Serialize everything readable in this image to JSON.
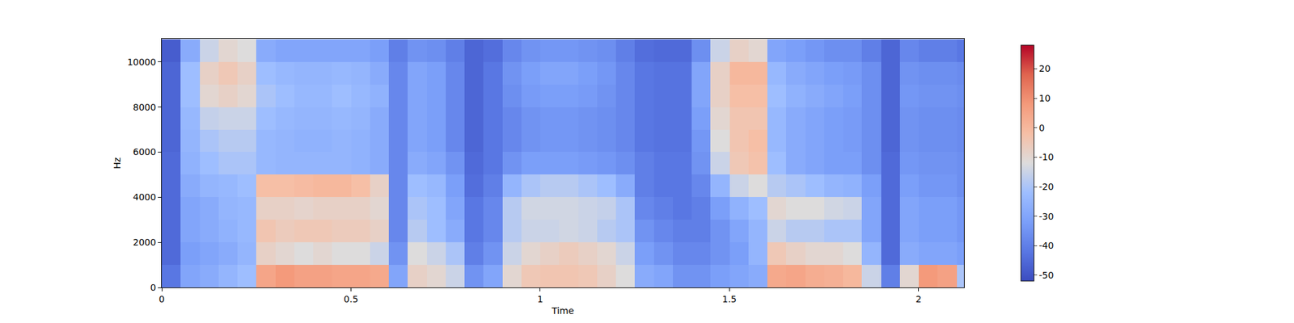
{
  "chart_data": {
    "type": "heatmap",
    "x_label": "Time",
    "y_label": "Hz",
    "xlim": [
      0,
      2.12
    ],
    "ylim": [
      0,
      11025
    ],
    "xticks": [
      0,
      0.5,
      1,
      1.5,
      2
    ],
    "yticks": [
      0,
      2000,
      4000,
      6000,
      8000,
      10000
    ],
    "zlim": [
      -52,
      28
    ],
    "zticks": [
      -50,
      -40,
      -30,
      -20,
      -10,
      0,
      10,
      20
    ],
    "x": [
      0.025,
      0.075,
      0.125,
      0.175,
      0.225,
      0.275,
      0.325,
      0.375,
      0.425,
      0.475,
      0.525,
      0.575,
      0.625,
      0.675,
      0.725,
      0.775,
      0.825,
      0.875,
      0.925,
      0.975,
      1.025,
      1.075,
      1.125,
      1.175,
      1.225,
      1.275,
      1.325,
      1.375,
      1.425,
      1.475,
      1.525,
      1.575,
      1.625,
      1.675,
      1.725,
      1.775,
      1.825,
      1.875,
      1.925,
      1.975,
      2.025,
      2.075,
      2.125
    ],
    "y": [
      500,
      1500,
      2500,
      3500,
      4500,
      5500,
      6500,
      7500,
      8500,
      9500,
      10500
    ],
    "cells": [
      [
        -42,
        -30,
        -28,
        -25,
        -22,
        5,
        8,
        6,
        6,
        5,
        5,
        4,
        -30,
        -8,
        -10,
        -15,
        -35,
        -30,
        -10,
        -5,
        -4,
        -4,
        -5,
        -8,
        -12,
        -28,
        -30,
        -35,
        -35,
        -32,
        -30,
        -28,
        4,
        5,
        3,
        2,
        0,
        -15,
        -40,
        -10,
        8,
        6,
        -20
      ],
      [
        -45,
        -32,
        -30,
        -28,
        -25,
        -8,
        -10,
        -12,
        -10,
        -12,
        -12,
        -15,
        -35,
        -12,
        -15,
        -20,
        -40,
        -35,
        -15,
        -10,
        -8,
        -6,
        -8,
        -10,
        -15,
        -32,
        -35,
        -38,
        -38,
        -35,
        -32,
        -25,
        -5,
        -8,
        -10,
        -10,
        -12,
        -25,
        -45,
        -28,
        -30,
        -30,
        -32
      ],
      [
        -45,
        -30,
        -28,
        -26,
        -24,
        -4,
        -6,
        -5,
        -5,
        -6,
        -6,
        -8,
        -38,
        -18,
        -22,
        -28,
        -42,
        -38,
        -18,
        -15,
        -15,
        -14,
        -15,
        -18,
        -20,
        -35,
        -38,
        -40,
        -40,
        -35,
        -30,
        -25,
        -15,
        -18,
        -18,
        -20,
        -20,
        -30,
        -45,
        -30,
        -32,
        -32,
        -34
      ],
      [
        -45,
        -30,
        -28,
        -25,
        -24,
        -8,
        -8,
        -9,
        -8,
        -8,
        -8,
        -10,
        -38,
        -20,
        -22,
        -30,
        -42,
        -38,
        -18,
        -14,
        -14,
        -14,
        -15,
        -16,
        -20,
        -38,
        -40,
        -42,
        -40,
        -32,
        -26,
        -22,
        -10,
        -12,
        -12,
        -14,
        -15,
        -30,
        -45,
        -30,
        -32,
        -32,
        -34
      ],
      [
        -45,
        -28,
        -25,
        -24,
        -22,
        -2,
        -2,
        -1,
        0,
        0,
        -2,
        -8,
        -38,
        -22,
        -24,
        -32,
        -44,
        -40,
        -25,
        -20,
        -18,
        -18,
        -20,
        -22,
        -28,
        -40,
        -42,
        -42,
        -38,
        -25,
        -15,
        -12,
        -18,
        -20,
        -22,
        -25,
        -26,
        -32,
        -45,
        -32,
        -34,
        -34,
        -36
      ],
      [
        -45,
        -26,
        -22,
        -20,
        -20,
        -24,
        -25,
        -25,
        -25,
        -25,
        -26,
        -28,
        -38,
        -28,
        -30,
        -35,
        -45,
        -42,
        -35,
        -32,
        -32,
        -32,
        -33,
        -34,
        -36,
        -40,
        -42,
        -42,
        -35,
        -15,
        -5,
        -3,
        -22,
        -28,
        -30,
        -32,
        -32,
        -36,
        -45,
        -34,
        -35,
        -35,
        -36
      ],
      [
        -46,
        -25,
        -20,
        -18,
        -18,
        -24,
        -25,
        -26,
        -26,
        -25,
        -26,
        -28,
        -38,
        -30,
        -32,
        -38,
        -46,
        -42,
        -38,
        -35,
        -34,
        -34,
        -35,
        -36,
        -38,
        -42,
        -43,
        -43,
        -34,
        -12,
        -4,
        -2,
        -24,
        -28,
        -30,
        -32,
        -33,
        -36,
        -46,
        -35,
        -36,
        -36,
        -37
      ],
      [
        -46,
        -24,
        -16,
        -15,
        -15,
        -22,
        -24,
        -25,
        -25,
        -24,
        -25,
        -28,
        -38,
        -30,
        -32,
        -38,
        -46,
        -42,
        -38,
        -35,
        -34,
        -34,
        -35,
        -36,
        -38,
        -42,
        -43,
        -43,
        -32,
        -10,
        -4,
        -4,
        -24,
        -28,
        -30,
        -32,
        -33,
        -36,
        -46,
        -35,
        -36,
        -36,
        -37
      ],
      [
        -46,
        -22,
        -10,
        -8,
        -10,
        -20,
        -22,
        -24,
        -24,
        -22,
        -24,
        -26,
        -38,
        -30,
        -32,
        -38,
        -46,
        -42,
        -36,
        -33,
        -32,
        -32,
        -33,
        -35,
        -38,
        -42,
        -43,
        -43,
        -30,
        -8,
        -2,
        -2,
        -22,
        -26,
        -28,
        -30,
        -32,
        -36,
        -46,
        -34,
        -35,
        -35,
        -36
      ],
      [
        -46,
        -22,
        -8,
        -5,
        -8,
        -22,
        -24,
        -25,
        -25,
        -24,
        -25,
        -28,
        -38,
        -30,
        -32,
        -38,
        -46,
        -42,
        -35,
        -32,
        -30,
        -30,
        -32,
        -34,
        -38,
        -42,
        -43,
        -43,
        -30,
        -8,
        0,
        0,
        -24,
        -28,
        -30,
        -32,
        -33,
        -36,
        -46,
        -35,
        -36,
        -36,
        -37
      ],
      [
        -48,
        -28,
        -15,
        -10,
        -12,
        -28,
        -30,
        -30,
        -30,
        -30,
        -30,
        -32,
        -40,
        -35,
        -36,
        -40,
        -46,
        -44,
        -38,
        -35,
        -34,
        -34,
        -35,
        -36,
        -40,
        -44,
        -45,
        -45,
        -36,
        -15,
        -8,
        -10,
        -30,
        -32,
        -34,
        -36,
        -36,
        -40,
        -46,
        -38,
        -40,
        -40,
        -42
      ]
    ]
  }
}
